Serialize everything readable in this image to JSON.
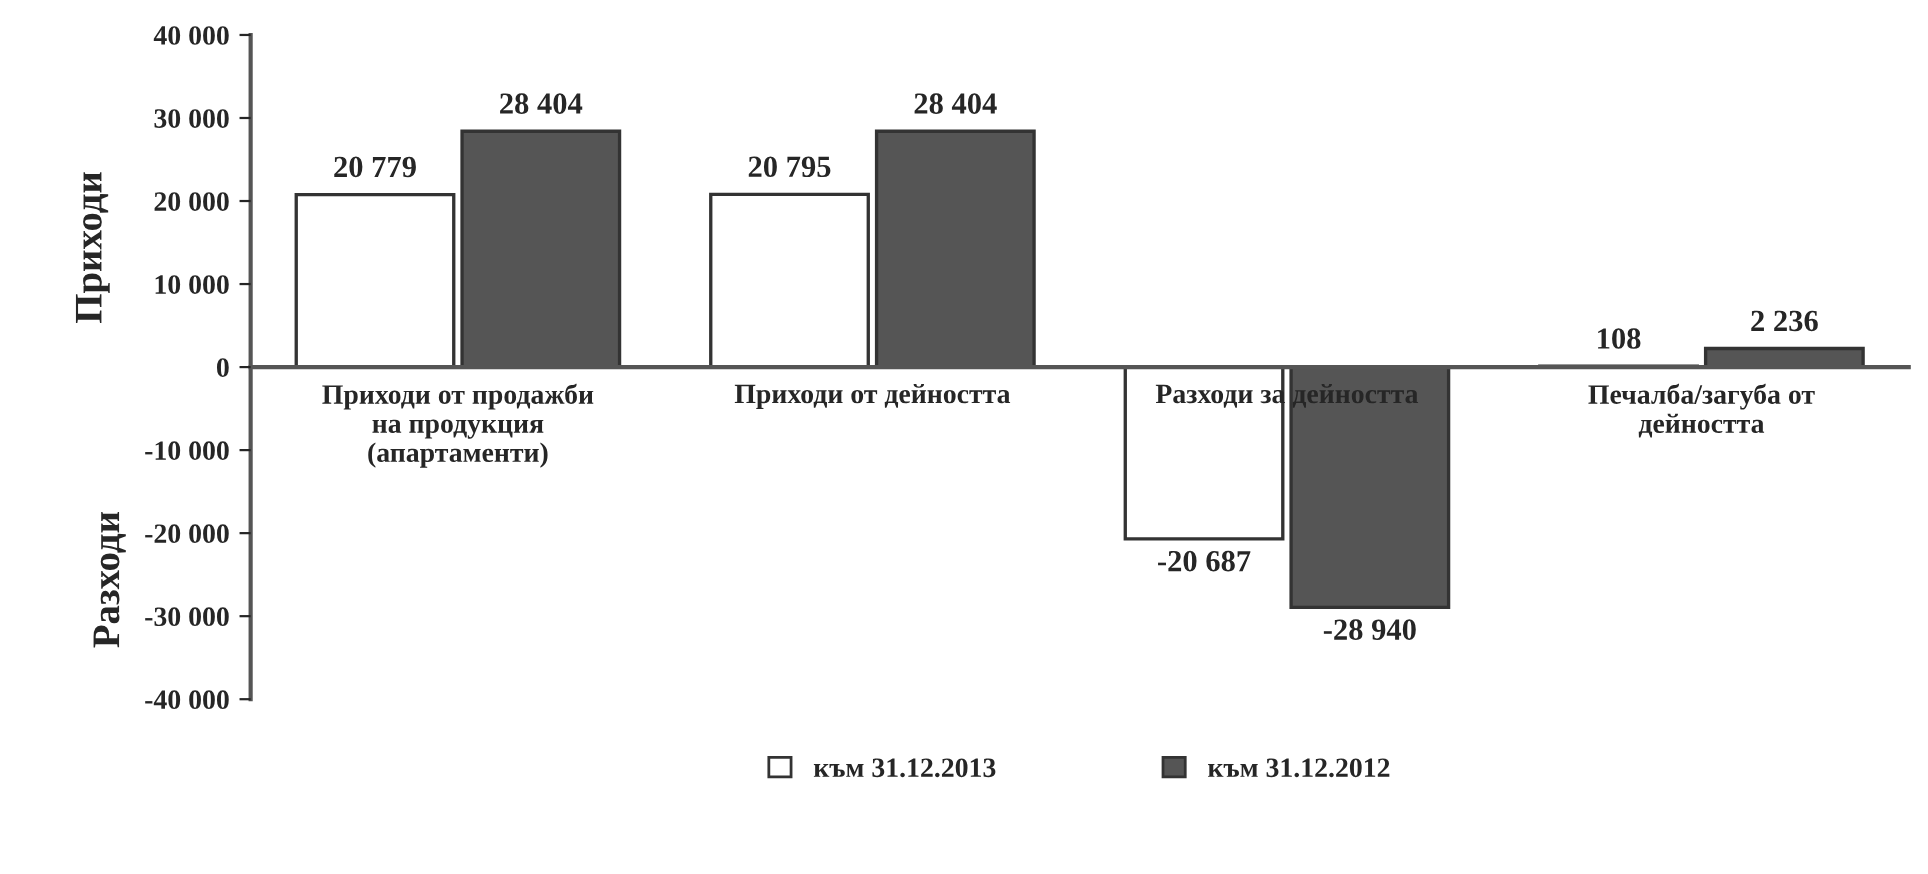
{
  "chart_data": {
    "type": "bar",
    "ylabel": "Приходи",
    "annotations": [
      "Разходи"
    ],
    "categories": [
      "Приходи от продажби\nна продукция\n(апартаменти)",
      "Приходи от дейността",
      "Разходи за дейността",
      "Печалба/загуба от\nдейността"
    ],
    "series": [
      {
        "name": "към 31.12.2013",
        "color": "#ffffff",
        "values": [
          20779,
          20795,
          -20687,
          108
        ],
        "value_labels": [
          "20 779",
          "20 795",
          "-20 687",
          "108"
        ]
      },
      {
        "name": "към 31.12.2012",
        "color": "#555555",
        "values": [
          28404,
          28404,
          -28940,
          2236
        ],
        "value_labels": [
          "28 404",
          "28 404",
          "-28 940",
          "2 236"
        ]
      }
    ],
    "ylim": [
      -40000,
      40000
    ],
    "yticks": [
      {
        "value": -40000,
        "label": "-40 000"
      },
      {
        "value": -30000,
        "label": "-30 000"
      },
      {
        "value": -20000,
        "label": "-20 000"
      },
      {
        "value": -10000,
        "label": "-10 000"
      },
      0,
      {
        "value": 10000,
        "label": "10 000"
      },
      {
        "value": 20000,
        "label": "20 000"
      },
      {
        "value": 30000,
        "label": "30 000"
      },
      {
        "value": 40000,
        "label": "40 000"
      }
    ],
    "grid": false,
    "legend": "bottom"
  }
}
